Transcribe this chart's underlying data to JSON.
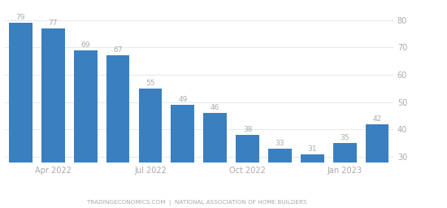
{
  "values": [
    79,
    77,
    69,
    67,
    55,
    49,
    46,
    38,
    33,
    31,
    35,
    42
  ],
  "bar_color": "#3a7fbf",
  "background_color": "#ffffff",
  "ylim": [
    28,
    82
  ],
  "yticks": [
    30,
    40,
    50,
    60,
    70,
    80
  ],
  "xtick_positions": [
    0,
    3,
    6,
    9
  ],
  "xtick_labels": [
    "Apr 2022",
    "Jul 2022",
    "Oct 2022",
    "Jan 2023"
  ],
  "footer_text": "TRADINGECONOMICS.COM  |  NATIONAL ASSOCIATION OF HOME BUILDERS",
  "label_color": "#aaaaaa",
  "tick_color": "#aaaaaa",
  "grid_color": "#e8e8e8",
  "bar_labels": [
    "79",
    "77",
    "69",
    "67",
    "55",
    "49",
    "46",
    "38",
    "33",
    "31",
    "35",
    "42"
  ]
}
